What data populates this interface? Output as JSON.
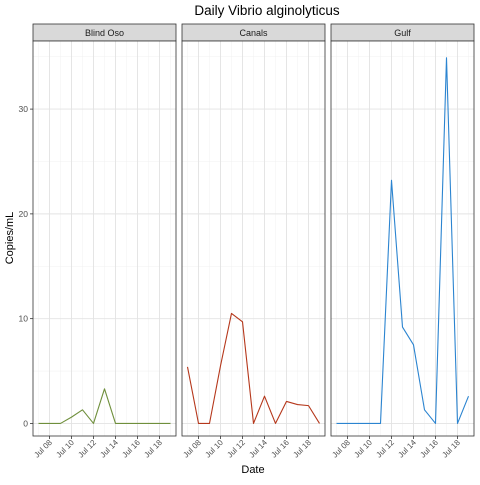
{
  "chart_data": {
    "type": "line",
    "title": "Daily Vibrio alginolyticus",
    "xlabel": "Date",
    "ylabel": "Copies/mL",
    "ylim": [
      -1.2,
      36.5
    ],
    "yticks": [
      0,
      10,
      20,
      30
    ],
    "x_day_range": [
      6.5,
      19.5
    ],
    "xticks": [
      {
        "day": 8,
        "label": "Jul 08"
      },
      {
        "day": 10,
        "label": "Jul 10"
      },
      {
        "day": 12,
        "label": "Jul 12"
      },
      {
        "day": 14,
        "label": "Jul 14"
      },
      {
        "day": 16,
        "label": "Jul 16"
      },
      {
        "day": 18,
        "label": "Jul 18"
      }
    ],
    "grid": true,
    "legend": "none",
    "panels": [
      {
        "name": "Blind Oso",
        "color": "#6f8f3c",
        "days": [
          7,
          8,
          9,
          10,
          11,
          12,
          13,
          14,
          15,
          16,
          17,
          18,
          19
        ],
        "values": [
          0,
          0,
          0,
          0.6,
          1.3,
          0,
          3.3,
          0,
          0,
          0,
          0,
          0,
          0
        ]
      },
      {
        "name": "Canals",
        "color": "#b5371b",
        "days": [
          7,
          8,
          9,
          10,
          11,
          12,
          13,
          14,
          15,
          16,
          17,
          18,
          19
        ],
        "values": [
          5.4,
          0,
          0,
          5.5,
          10.5,
          9.7,
          0,
          2.6,
          0,
          2.1,
          1.8,
          1.7,
          0
        ]
      },
      {
        "name": "Gulf",
        "color": "#2b84d0",
        "days": [
          7,
          8,
          9,
          10,
          11,
          12,
          13,
          14,
          15,
          16,
          17,
          18,
          19
        ],
        "values": [
          0,
          0,
          0,
          0,
          0,
          23.2,
          9.2,
          7.5,
          1.3,
          0,
          34.9,
          0,
          2.6
        ]
      }
    ]
  }
}
